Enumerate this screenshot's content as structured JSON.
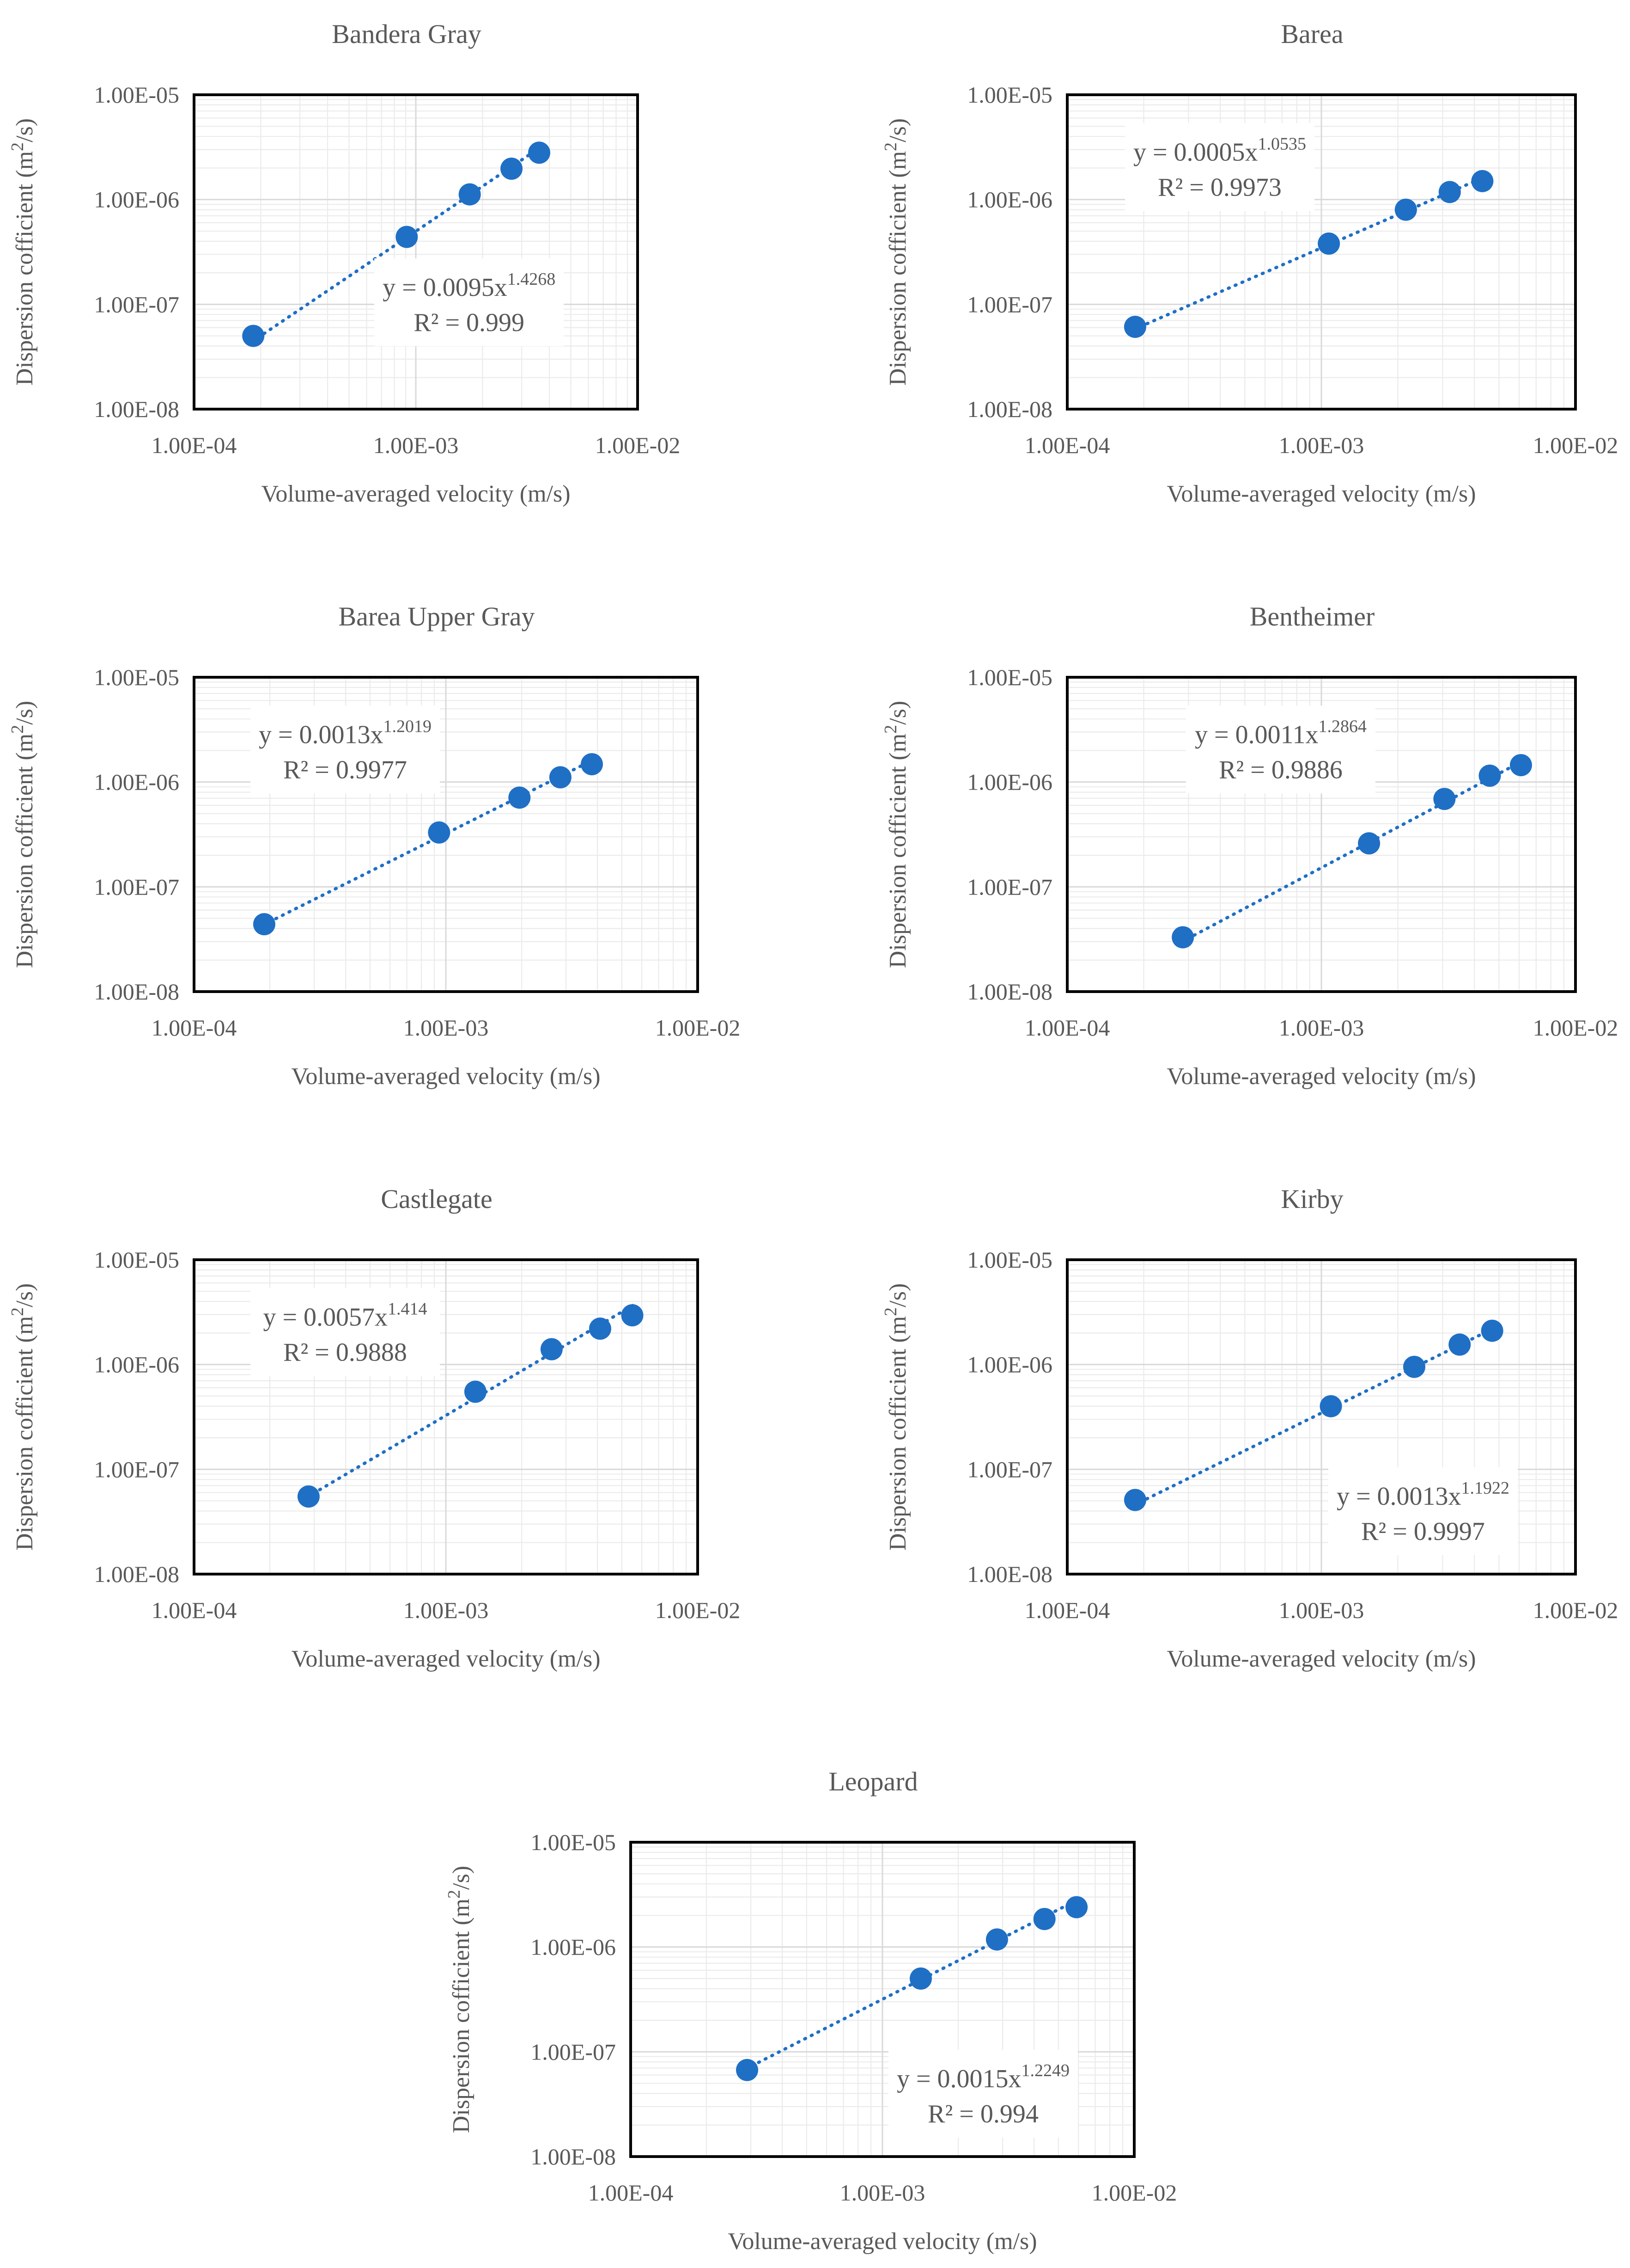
{
  "colors": {
    "series": "#1f6fc5",
    "text": "#595959",
    "frame": "#000000",
    "grid_major": "#d9d9d9",
    "grid_minor": "#ebebeb"
  },
  "chart_data": [
    {
      "type": "scatter",
      "title": "Bandera Gray",
      "xlabel": "Volume-averaged velocity (m/s)",
      "ylabel_main": "Dispersion cofficient",
      "ylabel_unit": "(m",
      "ylabel_exp": "2",
      "ylabel_end": "/s)",
      "xscale": "log",
      "yscale": "log",
      "xlim": [
        0.0001,
        0.01
      ],
      "ylim": [
        1e-08,
        1e-05
      ],
      "xticks": [
        "1.00E-04",
        "1.00E-03",
        "1.00E-02"
      ],
      "yticks": [
        "1.00E-08",
        "1.00E-07",
        "1.00E-06",
        "1.00E-05"
      ],
      "x": [
        0.000185,
        0.00091,
        0.00175,
        0.0027,
        0.0036
      ],
      "y": [
        5e-08,
        4.4e-07,
        1.12e-06,
        1.97e-06,
        2.8e-06
      ],
      "trendline": {
        "type": "power",
        "coef": 0.0095,
        "exp": 1.4268,
        "equation_main": "y = 0.0095x",
        "equation_exp": "1.4268",
        "r2": "R² = 0.999",
        "position": "center-right"
      }
    },
    {
      "type": "scatter",
      "title": "Barea",
      "xlabel": "Volume-averaged velocity (m/s)",
      "ylabel_main": "Dispersion cofficient",
      "ylabel_unit": "(m",
      "ylabel_exp": "2",
      "ylabel_end": "/s)",
      "xscale": "log",
      "yscale": "log",
      "xlim": [
        0.0001,
        0.01
      ],
      "ylim": [
        1e-08,
        1e-05
      ],
      "xticks": [
        "1.00E-04",
        "1.00E-03",
        "1.00E-02"
      ],
      "yticks": [
        "1.00E-08",
        "1.00E-07",
        "1.00E-06",
        "1.00E-05"
      ],
      "x": [
        0.000185,
        0.00107,
        0.00215,
        0.0032,
        0.0043
      ],
      "y": [
        6.1e-08,
        3.8e-07,
        8e-07,
        1.18e-06,
        1.5e-06
      ],
      "trendline": {
        "type": "power",
        "coef": 0.0005,
        "exp": 1.0535,
        "equation_main": "y = 0.0005x",
        "equation_exp": "1.0535",
        "r2": "R² = 0.9973",
        "position": "top-left"
      }
    },
    {
      "type": "scatter",
      "title": "Barea Upper Gray",
      "xlabel": "Volume-averaged velocity (m/s)",
      "ylabel_main": "Dispersion cofficient",
      "ylabel_unit": "(m",
      "ylabel_exp": "2",
      "ylabel_end": "/s)",
      "xscale": "log",
      "yscale": "log",
      "xlim": [
        0.0001,
        0.01
      ],
      "ylim": [
        1e-08,
        1e-05
      ],
      "xticks": [
        "1.00E-04",
        "1.00E-03",
        "1.00E-02"
      ],
      "yticks": [
        "1.00E-08",
        "1.00E-07",
        "1.00E-06",
        "1.00E-05"
      ],
      "x": [
        0.00019,
        0.00094,
        0.00196,
        0.00285,
        0.0038
      ],
      "y": [
        4.4e-08,
        3.3e-07,
        7.1e-07,
        1.11e-06,
        1.48e-06
      ],
      "trendline": {
        "type": "power",
        "coef": 0.0013,
        "exp": 1.2019,
        "equation_main": "y = 0.0013x",
        "equation_exp": "1.2019",
        "r2": "R² = 0.9977",
        "position": "top-left"
      }
    },
    {
      "type": "scatter",
      "title": "Bentheimer",
      "xlabel": "Volume-averaged velocity (m/s)",
      "ylabel_main": "Dispersion cofficient",
      "ylabel_unit": "(m",
      "ylabel_exp": "2",
      "ylabel_end": "/s)",
      "xscale": "log",
      "yscale": "log",
      "xlim": [
        0.0001,
        0.01
      ],
      "ylim": [
        1e-08,
        1e-05
      ],
      "xticks": [
        "1.00E-04",
        "1.00E-03",
        "1.00E-02"
      ],
      "yticks": [
        "1.00E-08",
        "1.00E-07",
        "1.00E-06",
        "1.00E-05"
      ],
      "x": [
        0.000285,
        0.00154,
        0.00305,
        0.0046,
        0.0061
      ],
      "y": [
        3.3e-08,
        2.6e-07,
        6.9e-07,
        1.15e-06,
        1.45e-06
      ],
      "trendline": {
        "type": "power",
        "coef": 0.0011,
        "exp": 1.2864,
        "equation_main": "y = 0.0011x",
        "equation_exp": "1.2864",
        "r2": "R² = 0.9886",
        "position": "top-center"
      }
    },
    {
      "type": "scatter",
      "title": "Castlegate",
      "xlabel": "Volume-averaged velocity (m/s)",
      "ylabel_main": "Dispersion cofficient",
      "ylabel_unit": "(m",
      "ylabel_exp": "2",
      "ylabel_end": "/s)",
      "xscale": "log",
      "yscale": "log",
      "xlim": [
        0.0001,
        0.01
      ],
      "ylim": [
        1e-08,
        1e-05
      ],
      "xticks": [
        "1.00E-04",
        "1.00E-03",
        "1.00E-02"
      ],
      "yticks": [
        "1.00E-08",
        "1.00E-07",
        "1.00E-06",
        "1.00E-05"
      ],
      "x": [
        0.000285,
        0.00131,
        0.00263,
        0.0041,
        0.0055
      ],
      "y": [
        5.5e-08,
        5.5e-07,
        1.4e-06,
        2.2e-06,
        2.95e-06
      ],
      "trendline": {
        "type": "power",
        "coef": 0.0057,
        "exp": 1.414,
        "equation_main": "y = 0.0057x",
        "equation_exp": "1.414",
        "r2": "R² = 0.9888",
        "position": "top-left"
      }
    },
    {
      "type": "scatter",
      "title": "Kirby",
      "xlabel": "Volume-averaged velocity (m/s)",
      "ylabel_main": "Dispersion cofficient",
      "ylabel_unit": "(m",
      "ylabel_exp": "2",
      "ylabel_end": "/s)",
      "xscale": "log",
      "yscale": "log",
      "xlim": [
        0.0001,
        0.01
      ],
      "ylim": [
        1e-08,
        1e-05
      ],
      "xticks": [
        "1.00E-04",
        "1.00E-03",
        "1.00E-02"
      ],
      "yticks": [
        "1.00E-08",
        "1.00E-07",
        "1.00E-06",
        "1.00E-05"
      ],
      "x": [
        0.000185,
        0.00109,
        0.00232,
        0.0035,
        0.0047
      ],
      "y": [
        5.1e-08,
        4e-07,
        9.5e-07,
        1.55e-06,
        2.1e-06
      ],
      "trendline": {
        "type": "power",
        "coef": 0.0013,
        "exp": 1.1922,
        "equation_main": "y = 0.0013x",
        "equation_exp": "1.1922",
        "r2": "R² = 0.9997",
        "position": "bottom-right"
      }
    },
    {
      "type": "scatter",
      "title": "Leopard",
      "xlabel": "Volume-averaged velocity (m/s)",
      "ylabel_main": "Dispersion cofficient",
      "ylabel_unit": "(m",
      "ylabel_exp": "2",
      "ylabel_end": "/s)",
      "xscale": "log",
      "yscale": "log",
      "xlim": [
        0.0001,
        0.01
      ],
      "ylim": [
        1e-08,
        1e-05
      ],
      "xticks": [
        "1.00E-04",
        "1.00E-03",
        "1.00E-02"
      ],
      "yticks": [
        "1.00E-08",
        "1.00E-07",
        "1.00E-06",
        "1.00E-05"
      ],
      "x": [
        0.00029,
        0.00142,
        0.00285,
        0.0044,
        0.0059
      ],
      "y": [
        6.7e-08,
        5e-07,
        1.18e-06,
        1.85e-06,
        2.4e-06
      ],
      "trendline": {
        "type": "power",
        "coef": 0.0015,
        "exp": 1.2249,
        "equation_main": "y = 0.0015x",
        "equation_exp": "1.2249",
        "r2": "R² = 0.994",
        "position": "bottom-right"
      }
    }
  ]
}
